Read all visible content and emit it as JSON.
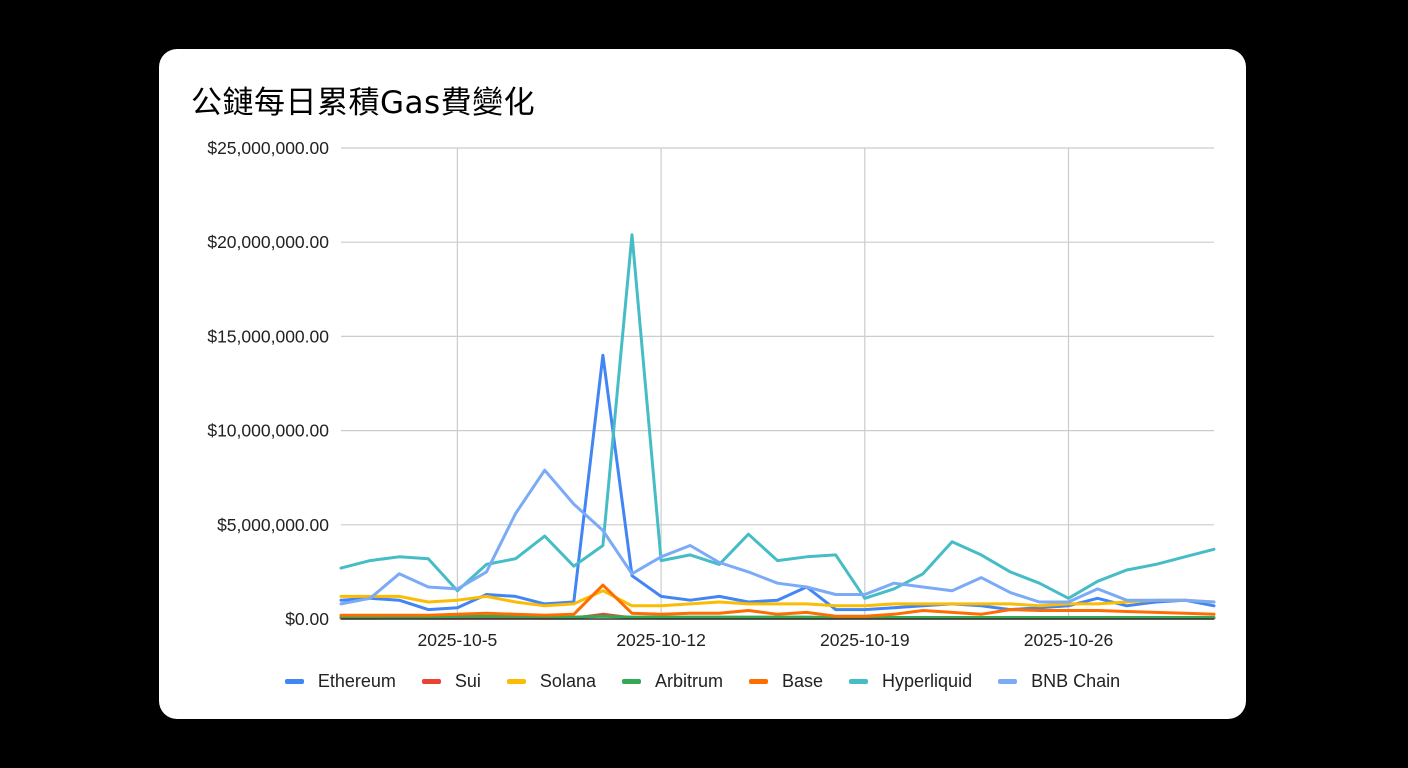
{
  "chart_data": {
    "type": "line",
    "title": "公鏈每日累積Gas費變化",
    "xlabel": "",
    "ylabel": "",
    "ylim": [
      0,
      25000000
    ],
    "y_ticks": [
      0,
      5000000,
      10000000,
      15000000,
      20000000,
      25000000
    ],
    "y_tick_labels": [
      "$0.00",
      "$5,000,000.00",
      "$10,000,000.00",
      "$15,000,000.00",
      "$20,000,000.00",
      "$25,000,000.00"
    ],
    "x": [
      "2025-10-1",
      "2025-10-2",
      "2025-10-3",
      "2025-10-4",
      "2025-10-5",
      "2025-10-6",
      "2025-10-7",
      "2025-10-8",
      "2025-10-9",
      "2025-10-10",
      "2025-10-11",
      "2025-10-12",
      "2025-10-13",
      "2025-10-14",
      "2025-10-15",
      "2025-10-16",
      "2025-10-17",
      "2025-10-18",
      "2025-10-19",
      "2025-10-20",
      "2025-10-21",
      "2025-10-22",
      "2025-10-23",
      "2025-10-24",
      "2025-10-25",
      "2025-10-26",
      "2025-10-27",
      "2025-10-28",
      "2025-10-29",
      "2025-10-30",
      "2025-10-31"
    ],
    "x_ticks": [
      {
        "label": "2025-10-5",
        "index": 4
      },
      {
        "label": "2025-10-12",
        "index": 11
      },
      {
        "label": "2025-10-19",
        "index": 18
      },
      {
        "label": "2025-10-26",
        "index": 25
      }
    ],
    "grid": true,
    "legend_position": "bottom",
    "series": [
      {
        "name": "Ethereum",
        "color": "#4285F4",
        "values": [
          1000000,
          1100000,
          1000000,
          500000,
          600000,
          1300000,
          1200000,
          800000,
          900000,
          14000000,
          2300000,
          1200000,
          1000000,
          1200000,
          900000,
          1000000,
          1700000,
          500000,
          500000,
          600000,
          700000,
          800000,
          700000,
          500000,
          600000,
          700000,
          1100000,
          700000,
          900000,
          1000000,
          700000
        ]
      },
      {
        "name": "Sui",
        "color": "#EA4335",
        "values": [
          50000,
          50000,
          60000,
          50000,
          50000,
          60000,
          60000,
          50000,
          50000,
          250000,
          60000,
          50000,
          50000,
          50000,
          50000,
          50000,
          50000,
          50000,
          50000,
          50000,
          50000,
          50000,
          50000,
          50000,
          50000,
          50000,
          50000,
          50000,
          50000,
          50000,
          50000
        ]
      },
      {
        "name": "Solana",
        "color": "#FBBC04",
        "values": [
          1200000,
          1200000,
          1200000,
          900000,
          1000000,
          1200000,
          900000,
          700000,
          800000,
          1500000,
          700000,
          700000,
          800000,
          900000,
          800000,
          800000,
          800000,
          700000,
          700000,
          800000,
          800000,
          800000,
          800000,
          800000,
          700000,
          800000,
          800000,
          900000,
          1000000,
          1000000,
          900000
        ]
      },
      {
        "name": "Arbitrum",
        "color": "#34A853",
        "values": [
          100000,
          100000,
          100000,
          100000,
          150000,
          150000,
          150000,
          120000,
          100000,
          150000,
          100000,
          100000,
          100000,
          100000,
          100000,
          100000,
          100000,
          80000,
          80000,
          80000,
          80000,
          80000,
          80000,
          80000,
          80000,
          80000,
          80000,
          80000,
          80000,
          80000,
          80000
        ]
      },
      {
        "name": "Base",
        "color": "#FF6D01",
        "values": [
          200000,
          200000,
          200000,
          200000,
          250000,
          300000,
          250000,
          200000,
          250000,
          1800000,
          300000,
          250000,
          300000,
          300000,
          450000,
          250000,
          350000,
          150000,
          150000,
          250000,
          450000,
          350000,
          250000,
          500000,
          450000,
          450000,
          450000,
          400000,
          350000,
          300000,
          250000
        ]
      },
      {
        "name": "Hyperliquid",
        "color": "#46BDC6",
        "values": [
          2700000,
          3100000,
          3300000,
          3200000,
          1500000,
          2900000,
          3200000,
          4400000,
          2800000,
          3900000,
          20400000,
          3100000,
          3400000,
          2900000,
          4500000,
          3100000,
          3300000,
          3400000,
          1100000,
          1600000,
          2400000,
          4100000,
          3400000,
          2500000,
          1900000,
          1100000,
          2000000,
          2600000,
          2900000,
          3300000,
          3700000
        ]
      },
      {
        "name": "BNB Chain",
        "color": "#7BAAF7",
        "values": [
          800000,
          1100000,
          2400000,
          1700000,
          1600000,
          2500000,
          5600000,
          7900000,
          6100000,
          4700000,
          2400000,
          3300000,
          3900000,
          3000000,
          2500000,
          1900000,
          1700000,
          1300000,
          1300000,
          1900000,
          1700000,
          1500000,
          2200000,
          1400000,
          900000,
          900000,
          1600000,
          1000000,
          1000000,
          1000000,
          900000
        ]
      }
    ]
  }
}
